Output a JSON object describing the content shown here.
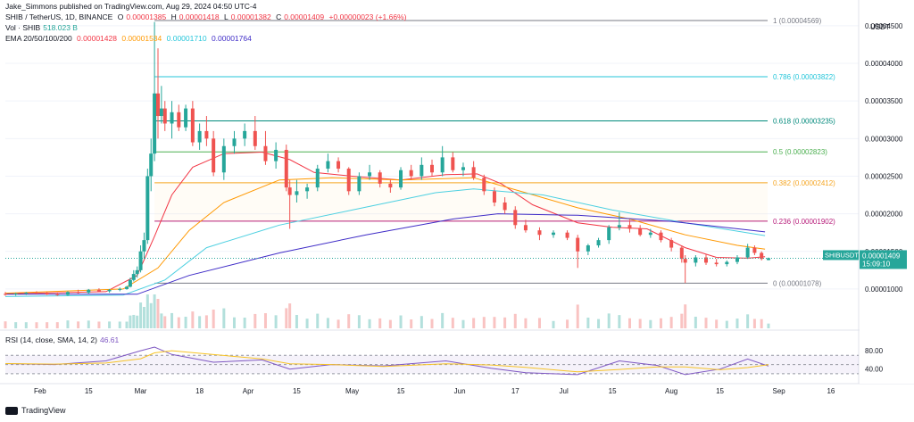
{
  "header": {
    "published": "Jake_Simmons published on TradingView.com, Aug 29, 2024 04:50 UTC-4",
    "symbol": "SHIB / TetherUS, 1D, BINANCE",
    "ohlc": {
      "o_label": "O",
      "o": "0.00001385",
      "h_label": "H",
      "h": "0.00001418",
      "l_label": "L",
      "l": "0.00001382",
      "c_label": "C",
      "c": "0.00001409",
      "change": "+0.00000023 (+1.66%)"
    },
    "volume": {
      "label": "Vol · SHIB",
      "value": "518.023 B"
    },
    "ema": {
      "label": "EMA 20/50/100/200",
      "v20": "0.00001428",
      "v50": "0.00001534",
      "v100": "0.00001710",
      "v200": "0.00001764"
    }
  },
  "price_axis": {
    "currency": "USDT",
    "ticks": [
      "0.00004500",
      "0.00004000",
      "0.00003500",
      "0.00003000",
      "0.00002500",
      "0.00002000",
      "0.00001500",
      "0.00001000"
    ],
    "last_label": "SHIBUSDT",
    "last_value": "0.00001409",
    "countdown": "15:09:10"
  },
  "time_axis": {
    "labels": [
      "Feb",
      "15",
      "Mar",
      "18",
      "Apr",
      "15",
      "May",
      "15",
      "Jun",
      "17",
      "Jul",
      "15",
      "Aug",
      "15",
      "Sep",
      "16"
    ]
  },
  "fib_levels": [
    {
      "label": "1 (0.00004569)",
      "price": 4.569e-05,
      "color": "#787b86"
    },
    {
      "label": "0.786 (0.00003822)",
      "price": 3.822e-05,
      "color": "#26c6da"
    },
    {
      "label": "0.618 (0.00003235)",
      "price": 3.235e-05,
      "color": "#00897b"
    },
    {
      "label": "0.5 (0.00002823)",
      "price": 2.823e-05,
      "color": "#4caf50"
    },
    {
      "label": "0.382 (0.00002412)",
      "price": 2.412e-05,
      "color": "#f5a623"
    },
    {
      "label": "0.236 (0.00001902)",
      "price": 1.902e-05,
      "color": "#b71c7a"
    },
    {
      "label": "0 (0.00001078)",
      "price": 1.078e-05,
      "color": "#787b86"
    }
  ],
  "rsi": {
    "label": "RSI (14, close, SMA, 14, 2)",
    "value": "46.61",
    "ticks": [
      "80.00",
      "40.00"
    ],
    "upper": 70,
    "lower": 30
  },
  "footer": {
    "brand": "TradingView"
  },
  "colors": {
    "up": "#26a69a",
    "down": "#ef5350",
    "ema20": "#f23645",
    "ema50": "#ff9800",
    "ema100": "#4dd0e1",
    "ema200": "#3f2cc7",
    "rsi": "#7e57c2",
    "rsi_ma": "#f7c325",
    "last_price_bg": "#26a69a"
  },
  "chart_data": {
    "type": "candlestick",
    "title": "SHIB / TetherUS, 1D, BINANCE",
    "ylim": [
      7.5e-06,
      4.7e-05
    ],
    "x_start": "2024-01-22",
    "x_end": "2024-09-24",
    "series": [
      {
        "name": "EMA 20",
        "points": [
          [
            "2024-01-22",
            9.35e-06
          ],
          [
            "2024-02-20",
            9.65e-06
          ],
          [
            "2024-02-29",
            1.18e-05
          ],
          [
            "2024-03-05",
            1.7e-05
          ],
          [
            "2024-03-10",
            2.25e-05
          ],
          [
            "2024-03-16",
            2.62e-05
          ],
          [
            "2024-03-25",
            2.8e-05
          ],
          [
            "2024-04-05",
            2.82e-05
          ],
          [
            "2024-04-13",
            2.72e-05
          ],
          [
            "2024-04-20",
            2.55e-05
          ],
          [
            "2024-05-01",
            2.5e-05
          ],
          [
            "2024-05-15",
            2.45e-05
          ],
          [
            "2024-05-28",
            2.52e-05
          ],
          [
            "2024-06-06",
            2.53e-05
          ],
          [
            "2024-06-13",
            2.4e-05
          ],
          [
            "2024-06-22",
            2.12e-05
          ],
          [
            "2024-07-05",
            1.88e-05
          ],
          [
            "2024-07-15",
            1.82e-05
          ],
          [
            "2024-07-25",
            1.8e-05
          ],
          [
            "2024-08-05",
            1.55e-05
          ],
          [
            "2024-08-14",
            1.42e-05
          ],
          [
            "2024-08-23",
            1.41e-05
          ],
          [
            "2024-08-28",
            1.43e-05
          ]
        ]
      },
      {
        "name": "EMA 50",
        "points": [
          [
            "2024-01-22",
            9.45e-06
          ],
          [
            "2024-02-25",
            1e-05
          ],
          [
            "2024-03-06",
            1.28e-05
          ],
          [
            "2024-03-15",
            1.78e-05
          ],
          [
            "2024-03-25",
            2.15e-05
          ],
          [
            "2024-04-10",
            2.45e-05
          ],
          [
            "2024-04-25",
            2.48e-05
          ],
          [
            "2024-05-15",
            2.45e-05
          ],
          [
            "2024-06-05",
            2.48e-05
          ],
          [
            "2024-06-20",
            2.28e-05
          ],
          [
            "2024-07-05",
            2.08e-05
          ],
          [
            "2024-07-20",
            1.93e-05
          ],
          [
            "2024-08-05",
            1.72e-05
          ],
          [
            "2024-08-20",
            1.58e-05
          ],
          [
            "2024-08-28",
            1.53e-05
          ]
        ]
      },
      {
        "name": "EMA 100",
        "points": [
          [
            "2024-01-22",
            9e-06
          ],
          [
            "2024-02-25",
            9.2e-06
          ],
          [
            "2024-03-08",
            1.12e-05
          ],
          [
            "2024-03-20",
            1.55e-05
          ],
          [
            "2024-04-10",
            1.85e-05
          ],
          [
            "2024-05-01",
            2.05e-05
          ],
          [
            "2024-05-25",
            2.28e-05
          ],
          [
            "2024-06-05",
            2.33e-05
          ],
          [
            "2024-06-25",
            2.25e-05
          ],
          [
            "2024-07-15",
            2.05e-05
          ],
          [
            "2024-08-05",
            1.88e-05
          ],
          [
            "2024-08-28",
            1.71e-05
          ]
        ]
      },
      {
        "name": "EMA 200",
        "points": [
          [
            "2024-01-22",
            9.3e-06
          ],
          [
            "2024-02-29",
            9.3e-06
          ],
          [
            "2024-03-15",
            1.18e-05
          ],
          [
            "2024-04-10",
            1.48e-05
          ],
          [
            "2024-05-05",
            1.72e-05
          ],
          [
            "2024-05-30",
            1.93e-05
          ],
          [
            "2024-06-12",
            2e-05
          ],
          [
            "2024-07-05",
            1.98e-05
          ],
          [
            "2024-08-01",
            1.9e-05
          ],
          [
            "2024-08-28",
            1.76e-05
          ]
        ]
      }
    ],
    "candles": [
      [
        "2024-01-22",
        9.35e-06,
        9.6e-06,
        9.1e-06,
        9.3e-06
      ],
      [
        "2024-01-25",
        9.3e-06,
        9.5e-06,
        9.1e-06,
        9.4e-06
      ],
      [
        "2024-01-28",
        9.4e-06,
        9.6e-06,
        9.2e-06,
        9.5e-06
      ],
      [
        "2024-01-31",
        9.5e-06,
        9.7e-06,
        9.3e-06,
        9.4e-06
      ],
      [
        "2024-02-03",
        9.4e-06,
        9.6e-06,
        9.2e-06,
        9.3e-06
      ],
      [
        "2024-02-06",
        9.3e-06,
        9.5e-06,
        9.1e-06,
        9.2e-06
      ],
      [
        "2024-02-09",
        9.2e-06,
        9.7e-06,
        9.1e-06,
        9.6e-06
      ],
      [
        "2024-02-12",
        9.6e-06,
        9.9e-06,
        9.4e-06,
        9.5e-06
      ],
      [
        "2024-02-15",
        9.5e-06,
        1e-05,
        9.4e-06,
        9.9e-06
      ],
      [
        "2024-02-18",
        9.9e-06,
        1.01e-05,
        9.6e-06,
        9.7e-06
      ],
      [
        "2024-02-21",
        9.7e-06,
        1e-05,
        9.5e-06,
        9.9e-06
      ],
      [
        "2024-02-24",
        9.9e-06,
        1.02e-05,
        9.7e-06,
        1e-05
      ],
      [
        "2024-02-26",
        1e-05,
        1.04e-05,
        9.9e-06,
        1.03e-05
      ],
      [
        "2024-02-27",
        1.03e-05,
        1.15e-05,
        1.02e-05,
        1.12e-05
      ],
      [
        "2024-02-28",
        1.12e-05,
        1.25e-05,
        1.1e-05,
        1.2e-05
      ],
      [
        "2024-02-29",
        1.2e-05,
        1.3e-05,
        1.15e-05,
        1.25e-05
      ],
      [
        "2024-03-01",
        1.25e-05,
        1.58e-05,
        1.22e-05,
        1.5e-05
      ],
      [
        "2024-03-02",
        1.5e-05,
        1.75e-05,
        1.4e-05,
        1.65e-05
      ],
      [
        "2024-03-03",
        1.65e-05,
        2.6e-05,
        1.6e-05,
        2.5e-05
      ],
      [
        "2024-03-04",
        2.5e-05,
        3e-05,
        2.3e-05,
        2.8e-05
      ],
      [
        "2024-03-05",
        2.8e-05,
        4.55e-05,
        2.7e-05,
        3.6e-05
      ],
      [
        "2024-03-06",
        3.6e-05,
        4.2e-05,
        3e-05,
        3.3e-05
      ],
      [
        "2024-03-07",
        3.3e-05,
        3.7e-05,
        3.2e-05,
        3.4e-05
      ],
      [
        "2024-03-08",
        3.4e-05,
        3.5e-05,
        3.1e-05,
        3.2e-05
      ],
      [
        "2024-03-10",
        3.2e-05,
        3.5e-05,
        3e-05,
        3.35e-05
      ],
      [
        "2024-03-12",
        3.35e-05,
        3.45e-05,
        3.1e-05,
        3.15e-05
      ],
      [
        "2024-03-14",
        3.15e-05,
        3.45e-05,
        3.1e-05,
        3.4e-05
      ],
      [
        "2024-03-16",
        3.4e-05,
        3.5e-05,
        2.9e-05,
        2.95e-05
      ],
      [
        "2024-03-18",
        2.95e-05,
        3.2e-05,
        2.85e-05,
        3.1e-05
      ],
      [
        "2024-03-20",
        3.1e-05,
        3.3e-05,
        2.9e-05,
        3e-05
      ],
      [
        "2024-03-22",
        3e-05,
        3.1e-05,
        2.5e-05,
        2.55e-05
      ],
      [
        "2024-03-25",
        2.55e-05,
        3e-05,
        2.45e-05,
        2.9e-05
      ],
      [
        "2024-03-28",
        2.9e-05,
        3.1e-05,
        2.8e-05,
        3e-05
      ],
      [
        "2024-03-31",
        3e-05,
        3.2e-05,
        2.9e-05,
        3.1e-05
      ],
      [
        "2024-04-03",
        3.1e-05,
        3.3e-05,
        2.85e-05,
        2.9e-05
      ],
      [
        "2024-04-06",
        2.9e-05,
        3.1e-05,
        2.65e-05,
        2.7e-05
      ],
      [
        "2024-04-09",
        2.7e-05,
        2.95e-05,
        2.6e-05,
        2.85e-05
      ],
      [
        "2024-04-12",
        2.85e-05,
        2.92e-05,
        2.3e-05,
        2.35e-05
      ],
      [
        "2024-04-13",
        2.35e-05,
        2.45e-05,
        1.8e-05,
        2.25e-05
      ],
      [
        "2024-04-15",
        2.25e-05,
        2.45e-05,
        2.15e-05,
        2.3e-05
      ],
      [
        "2024-04-18",
        2.3e-05,
        2.4e-05,
        2.2e-05,
        2.35e-05
      ],
      [
        "2024-04-21",
        2.35e-05,
        2.65e-05,
        2.3e-05,
        2.6e-05
      ],
      [
        "2024-04-24",
        2.6e-05,
        2.8e-05,
        2.55e-05,
        2.7e-05
      ],
      [
        "2024-04-27",
        2.7e-05,
        2.75e-05,
        2.55e-05,
        2.6e-05
      ],
      [
        "2024-04-30",
        2.6e-05,
        2.62e-05,
        2.25e-05,
        2.3e-05
      ],
      [
        "2024-05-03",
        2.3e-05,
        2.55e-05,
        2.25e-05,
        2.5e-05
      ],
      [
        "2024-05-06",
        2.5e-05,
        2.65e-05,
        2.45e-05,
        2.55e-05
      ],
      [
        "2024-05-09",
        2.55e-05,
        2.58e-05,
        2.35e-05,
        2.4e-05
      ],
      [
        "2024-05-12",
        2.4e-05,
        2.45e-05,
        2.28e-05,
        2.35e-05
      ],
      [
        "2024-05-15",
        2.35e-05,
        2.62e-05,
        2.32e-05,
        2.58e-05
      ],
      [
        "2024-05-18",
        2.58e-05,
        2.65e-05,
        2.45e-05,
        2.5e-05
      ],
      [
        "2024-05-21",
        2.5e-05,
        2.75e-05,
        2.45e-05,
        2.65e-05
      ],
      [
        "2024-05-24",
        2.65e-05,
        2.72e-05,
        2.5e-05,
        2.55e-05
      ],
      [
        "2024-05-27",
        2.55e-05,
        2.9e-05,
        2.5e-05,
        2.75e-05
      ],
      [
        "2024-05-30",
        2.75e-05,
        2.82e-05,
        2.55e-05,
        2.58e-05
      ],
      [
        "2024-06-02",
        2.58e-05,
        2.68e-05,
        2.5e-05,
        2.62e-05
      ],
      [
        "2024-06-05",
        2.62e-05,
        2.7e-05,
        2.45e-05,
        2.48e-05
      ],
      [
        "2024-06-08",
        2.48e-05,
        2.52e-05,
        2.25e-05,
        2.3e-05
      ],
      [
        "2024-06-11",
        2.3e-05,
        2.35e-05,
        2.1e-05,
        2.15e-05
      ],
      [
        "2024-06-14",
        2.15e-05,
        2.22e-05,
        2e-05,
        2.05e-05
      ],
      [
        "2024-06-17",
        2.05e-05,
        2.1e-05,
        1.8e-05,
        1.85e-05
      ],
      [
        "2024-06-20",
        1.85e-05,
        1.92e-05,
        1.75e-05,
        1.78e-05
      ],
      [
        "2024-06-24",
        1.78e-05,
        1.82e-05,
        1.65e-05,
        1.72e-05
      ],
      [
        "2024-06-28",
        1.72e-05,
        1.78e-05,
        1.68e-05,
        1.75e-05
      ],
      [
        "2024-07-02",
        1.75e-05,
        1.78e-05,
        1.65e-05,
        1.68e-05
      ],
      [
        "2024-07-05",
        1.68e-05,
        1.72e-05,
        1.28e-05,
        1.5e-05
      ],
      [
        "2024-07-08",
        1.5e-05,
        1.6e-05,
        1.45e-05,
        1.58e-05
      ],
      [
        "2024-07-11",
        1.58e-05,
        1.68e-05,
        1.55e-05,
        1.65e-05
      ],
      [
        "2024-07-14",
        1.65e-05,
        1.85e-05,
        1.6e-05,
        1.82e-05
      ],
      [
        "2024-07-17",
        1.82e-05,
        2.02e-05,
        1.78e-05,
        1.85e-05
      ],
      [
        "2024-07-20",
        1.85e-05,
        1.92e-05,
        1.75e-05,
        1.8e-05
      ],
      [
        "2024-07-23",
        1.8e-05,
        1.85e-05,
        1.7e-05,
        1.72e-05
      ],
      [
        "2024-07-26",
        1.72e-05,
        1.8e-05,
        1.68e-05,
        1.75e-05
      ],
      [
        "2024-07-29",
        1.75e-05,
        1.78e-05,
        1.62e-05,
        1.65e-05
      ],
      [
        "2024-08-01",
        1.65e-05,
        1.68e-05,
        1.5e-05,
        1.55e-05
      ],
      [
        "2024-08-04",
        1.55e-05,
        1.58e-05,
        1.35e-05,
        1.4e-05
      ],
      [
        "2024-08-05",
        1.4e-05,
        1.45e-05,
        1.08e-05,
        1.35e-05
      ],
      [
        "2024-08-08",
        1.35e-05,
        1.45e-05,
        1.3e-05,
        1.42e-05
      ],
      [
        "2024-08-11",
        1.42e-05,
        1.46e-05,
        1.32e-05,
        1.35e-05
      ],
      [
        "2024-08-14",
        1.35e-05,
        1.4e-05,
        1.3e-05,
        1.33e-05
      ],
      [
        "2024-08-17",
        1.33e-05,
        1.38e-05,
        1.3e-05,
        1.36e-05
      ],
      [
        "2024-08-20",
        1.36e-05,
        1.45e-05,
        1.33e-05,
        1.42e-05
      ],
      [
        "2024-08-23",
        1.42e-05,
        1.6e-05,
        1.4e-05,
        1.55e-05
      ],
      [
        "2024-08-25",
        1.55e-05,
        1.58e-05,
        1.45e-05,
        1.48e-05
      ],
      [
        "2024-08-27",
        1.48e-05,
        1.5e-05,
        1.38e-05,
        1.4e-05
      ],
      [
        "2024-08-29",
        1.385e-05,
        1.418e-05,
        1.382e-05,
        1.409e-05
      ]
    ],
    "volume_ticks": [],
    "rsi_values": [
      [
        "2024-01-22",
        52
      ],
      [
        "2024-02-05",
        50
      ],
      [
        "2024-02-20",
        58
      ],
      [
        "2024-03-01",
        80
      ],
      [
        "2024-03-05",
        88
      ],
      [
        "2024-03-10",
        72
      ],
      [
        "2024-03-22",
        55
      ],
      [
        "2024-04-05",
        60
      ],
      [
        "2024-04-13",
        40
      ],
      [
        "2024-04-25",
        50
      ],
      [
        "2024-05-10",
        47
      ],
      [
        "2024-05-28",
        58
      ],
      [
        "2024-06-10",
        42
      ],
      [
        "2024-06-20",
        32
      ],
      [
        "2024-07-05",
        28
      ],
      [
        "2024-07-17",
        58
      ],
      [
        "2024-07-28",
        48
      ],
      [
        "2024-08-05",
        28
      ],
      [
        "2024-08-15",
        40
      ],
      [
        "2024-08-23",
        62
      ],
      [
        "2024-08-29",
        46.61
      ]
    ]
  }
}
